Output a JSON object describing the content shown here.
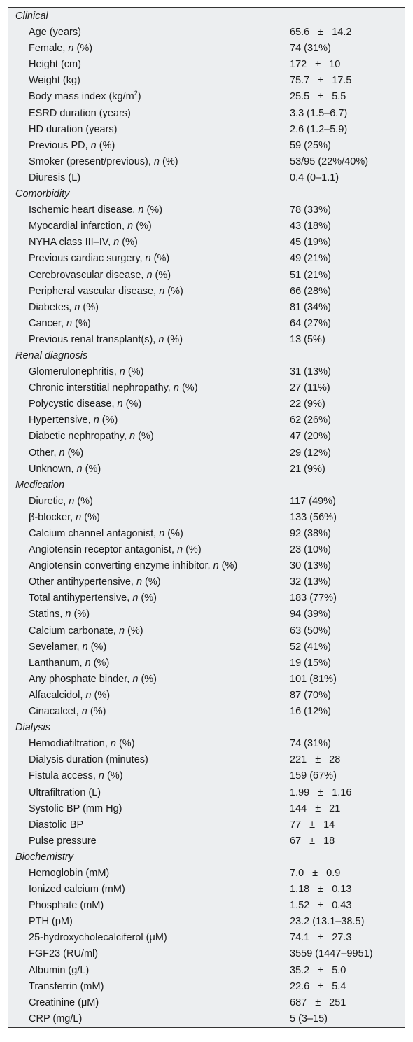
{
  "sections": [
    {
      "title": "Clinical",
      "rows": [
        {
          "label": "Age (years)",
          "value": "65.6 ± 14.2"
        },
        {
          "label": "Female, n (%)",
          "value": "74 (31%)"
        },
        {
          "label": "Height (cm)",
          "value": "172 ± 10"
        },
        {
          "label": "Weight (kg)",
          "value": "75.7 ± 17.5"
        },
        {
          "label": "Body mass index (kg/m2)",
          "value": "25.5 ± 5.5"
        },
        {
          "label": "ESRD duration (years)",
          "value": "3.3 (1.5–6.7)"
        },
        {
          "label": "HD duration (years)",
          "value": "2.6 (1.2–5.9)"
        },
        {
          "label": "Previous PD, n (%)",
          "value": "59 (25%)"
        },
        {
          "label": "Smoker (present/previous), n (%)",
          "value": "53/95 (22%/40%)"
        },
        {
          "label": "Diuresis (L)",
          "value": "0.4 (0–1.1)"
        }
      ]
    },
    {
      "title": "Comorbidity",
      "rows": [
        {
          "label": "Ischemic heart disease, n (%)",
          "value": "78 (33%)"
        },
        {
          "label": "Myocardial infarction, n (%)",
          "value": "43 (18%)"
        },
        {
          "label": "NYHA class III–IV, n (%)",
          "value": "45 (19%)"
        },
        {
          "label": "Previous cardiac surgery, n (%)",
          "value": "49 (21%)"
        },
        {
          "label": "Cerebrovascular disease, n (%)",
          "value": "51 (21%)"
        },
        {
          "label": "Peripheral vascular disease, n (%)",
          "value": "66 (28%)"
        },
        {
          "label": "Diabetes, n (%)",
          "value": "81 (34%)"
        },
        {
          "label": "Cancer, n (%)",
          "value": "64 (27%)"
        },
        {
          "label": "Previous renal transplant(s), n (%)",
          "value": "13 (5%)"
        }
      ]
    },
    {
      "title": "Renal diagnosis",
      "rows": [
        {
          "label": "Glomerulonephritis, n (%)",
          "value": "31 (13%)"
        },
        {
          "label": "Chronic interstitial nephropathy, n (%)",
          "value": "27 (11%)"
        },
        {
          "label": "Polycystic disease, n (%)",
          "value": "22 (9%)"
        },
        {
          "label": "Hypertensive, n (%)",
          "value": "62 (26%)"
        },
        {
          "label": "Diabetic nephropathy, n (%)",
          "value": "47 (20%)"
        },
        {
          "label": "Other, n (%)",
          "value": "29 (12%)"
        },
        {
          "label": "Unknown, n (%)",
          "value": "21 (9%)"
        }
      ]
    },
    {
      "title": "Medication",
      "rows": [
        {
          "label": "Diuretic, n (%)",
          "value": "117 (49%)"
        },
        {
          "label": "β-blocker, n (%)",
          "value": "133 (56%)"
        },
        {
          "label": "Calcium channel antagonist, n (%)",
          "value": "92 (38%)"
        },
        {
          "label": "Angiotensin receptor antagonist, n (%)",
          "value": "23 (10%)"
        },
        {
          "label": "Angiotensin converting enzyme inhibitor, n (%)",
          "value": "30 (13%)"
        },
        {
          "label": "Other antihypertensive, n (%)",
          "value": "32 (13%)"
        },
        {
          "label": "Total antihypertensive, n (%)",
          "value": "183 (77%)"
        },
        {
          "label": "Statins, n (%)",
          "value": "94 (39%)"
        },
        {
          "label": "Calcium carbonate, n (%)",
          "value": "63 (50%)"
        },
        {
          "label": "Sevelamer, n (%)",
          "value": "52 (41%)"
        },
        {
          "label": "Lanthanum, n (%)",
          "value": "19 (15%)"
        },
        {
          "label": "Any phosphate binder, n (%)",
          "value": "101 (81%)"
        },
        {
          "label": "Alfacalcidol, n (%)",
          "value": "87 (70%)"
        },
        {
          "label": "Cinacalcet, n (%)",
          "value": "16 (12%)"
        }
      ]
    },
    {
      "title": "Dialysis",
      "rows": [
        {
          "label": "Hemodiafiltration, n (%)",
          "value": "74 (31%)"
        },
        {
          "label": "Dialysis duration (minutes)",
          "value": "221 ± 28"
        },
        {
          "label": "Fistula access, n (%)",
          "value": "159 (67%)"
        },
        {
          "label": "Ultrafiltration (L)",
          "value": "1.99 ± 1.16"
        },
        {
          "label": "Systolic BP (mm Hg)",
          "value": "144 ± 21"
        },
        {
          "label": "Diastolic BP",
          "value": "77 ± 14"
        },
        {
          "label": "Pulse pressure",
          "value": "67 ± 18"
        }
      ]
    },
    {
      "title": "Biochemistry",
      "rows": [
        {
          "label": "Hemoglobin (mM)",
          "value": "7.0 ± 0.9"
        },
        {
          "label": "Ionized calcium (mM)",
          "value": "1.18 ± 0.13"
        },
        {
          "label": "Phosphate (mM)",
          "value": "1.52 ± 0.43"
        },
        {
          "label": "PTH (pM)",
          "value": "23.2 (13.1–38.5)"
        },
        {
          "label": "25-hydroxycholecalciferol (μM)",
          "value": "74.1 ± 27.3"
        },
        {
          "label": "FGF23 (RU/ml)",
          "value": "3559 (1447–9951)"
        },
        {
          "label": "Albumin (g/L)",
          "value": "35.2 ± 5.0"
        },
        {
          "label": "Transferrin (mM)",
          "value": "22.6 ± 5.4"
        },
        {
          "label": "Creatinine (μM)",
          "value": "687 ± 251"
        },
        {
          "label": "CRP (mg/L)",
          "value": "5 (3–15)"
        }
      ]
    }
  ]
}
